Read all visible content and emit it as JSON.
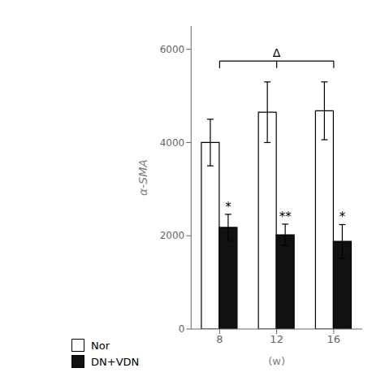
{
  "chart_data": {
    "type": "bar",
    "categories": [
      "8",
      "12",
      "16"
    ],
    "series": [
      {
        "name": "Nor",
        "color": "#ffffff",
        "values": [
          4000,
          4650,
          4680
        ],
        "errors": [
          500,
          650,
          620
        ]
      },
      {
        "name": "DN+VDN",
        "color": "#111111",
        "values": [
          2180,
          2020,
          1880
        ],
        "errors": [
          280,
          230,
          360
        ]
      }
    ],
    "ylabel": "α-SMA",
    "xlabel": "(w)",
    "ylim": [
      0,
      6500
    ],
    "yticks": [
      0,
      2000,
      4000,
      6000
    ],
    "grid": false,
    "legend": "lower left",
    "annotations": [
      {
        "text": "*",
        "category": "8",
        "series": "DN+VDN"
      },
      {
        "text": "**",
        "category": "12",
        "series": "DN+VDN"
      },
      {
        "text": "*",
        "category": "16",
        "series": "DN+VDN"
      },
      {
        "text": "Δ",
        "y": 5750,
        "y_drop": 5600,
        "categories": [
          "8",
          "12",
          "16"
        ]
      }
    ]
  }
}
